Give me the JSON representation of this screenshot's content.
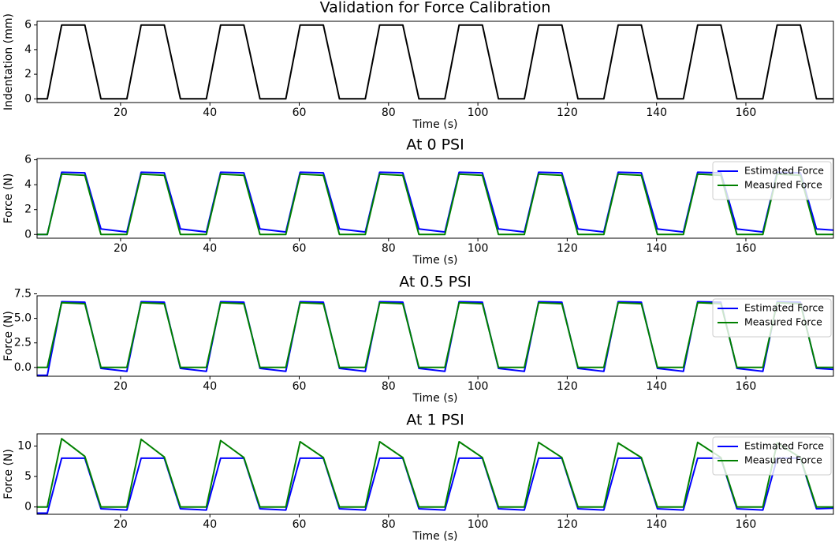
{
  "chart_data": [
    {
      "type": "line",
      "title": "Validation for Force Calibration",
      "xlabel": "Time (s)",
      "ylabel": "Indentation (mm)",
      "x": [
        1.3,
        3.6,
        6.8,
        12.0,
        15.6,
        21.4,
        24.6,
        29.8,
        33.4,
        39.2,
        42.4,
        47.6,
        51.2,
        57.0,
        60.2,
        65.4,
        69.0,
        74.8,
        78.0,
        83.2,
        86.8,
        92.6,
        95.8,
        101.0,
        104.6,
        110.4,
        113.6,
        118.8,
        122.4,
        128.2,
        131.4,
        136.6,
        140.2,
        146.0,
        149.2,
        154.4,
        158.0,
        163.8,
        167.0,
        172.2,
        175.8,
        179.6
      ],
      "series": [
        {
          "color": "#000000",
          "values": [
            0,
            0,
            6,
            6,
            0,
            0,
            6,
            6,
            0,
            0,
            6,
            6,
            0,
            0,
            6,
            6,
            0,
            0,
            6,
            6,
            0,
            0,
            6,
            6,
            0,
            0,
            6,
            6,
            0,
            0,
            6,
            6,
            0,
            0,
            6,
            6,
            0,
            0,
            6,
            6,
            0,
            0
          ]
        }
      ],
      "xlim": [
        1.3,
        179.6
      ],
      "ylim": [
        -0.3,
        6.3
      ],
      "xticks": [
        20,
        40,
        60,
        80,
        100,
        120,
        140,
        160
      ],
      "yticks": [
        0,
        2,
        4,
        6
      ]
    },
    {
      "type": "line",
      "title": "At 0 PSI",
      "xlabel": "Time (s)",
      "ylabel": "Force (N)",
      "legend": "upper right",
      "x": [
        1.3,
        3.6,
        6.8,
        12.0,
        15.6,
        21.4,
        24.6,
        29.8,
        33.4,
        39.2,
        42.4,
        47.6,
        51.2,
        57.0,
        60.2,
        65.4,
        69.0,
        74.8,
        78.0,
        83.2,
        86.8,
        92.6,
        95.8,
        101.0,
        104.6,
        110.4,
        113.6,
        118.8,
        122.4,
        128.2,
        131.4,
        136.6,
        140.2,
        146.0,
        149.2,
        154.4,
        158.0,
        163.8,
        167.0,
        172.2,
        175.8,
        179.6
      ],
      "series": [
        {
          "name": "Estimated Force",
          "color": "#0000ff",
          "values": [
            0,
            0,
            5.0,
            4.95,
            0.45,
            0.2,
            5.0,
            4.95,
            0.45,
            0.2,
            5.0,
            4.95,
            0.45,
            0.2,
            5.0,
            4.95,
            0.45,
            0.2,
            5.0,
            4.95,
            0.45,
            0.2,
            5.0,
            4.95,
            0.45,
            0.2,
            5.0,
            4.95,
            0.45,
            0.2,
            5.0,
            4.95,
            0.45,
            0.2,
            5.0,
            4.95,
            0.45,
            0.2,
            5.0,
            4.95,
            0.45,
            0.35
          ]
        },
        {
          "name": "Measured Force",
          "color": "#008000",
          "values": [
            0,
            0,
            4.85,
            4.75,
            0,
            0,
            4.85,
            4.75,
            0,
            0,
            4.85,
            4.75,
            0,
            0,
            4.85,
            4.75,
            0,
            0,
            4.85,
            4.75,
            0,
            0,
            4.85,
            4.75,
            0,
            0,
            4.85,
            4.75,
            0,
            0,
            4.85,
            4.75,
            0,
            0,
            4.85,
            4.75,
            0,
            0,
            4.85,
            4.75,
            0,
            0
          ]
        }
      ],
      "xlim": [
        1.3,
        179.6
      ],
      "ylim": [
        -0.3,
        6.1
      ],
      "xticks": [
        20,
        40,
        60,
        80,
        100,
        120,
        140,
        160
      ],
      "yticks": [
        0,
        2,
        4,
        6
      ]
    },
    {
      "type": "line",
      "title": "At 0.5 PSI",
      "xlabel": "Time (s)",
      "ylabel": "Force (N)",
      "legend": "upper right",
      "x": [
        1.3,
        3.6,
        6.8,
        12.0,
        15.6,
        21.4,
        24.6,
        29.8,
        33.4,
        39.2,
        42.4,
        47.6,
        51.2,
        57.0,
        60.2,
        65.4,
        69.0,
        74.8,
        78.0,
        83.2,
        86.8,
        92.6,
        95.8,
        101.0,
        104.6,
        110.4,
        113.6,
        118.8,
        122.4,
        128.2,
        131.4,
        136.6,
        140.2,
        146.0,
        149.2,
        154.4,
        158.0,
        163.8,
        167.0,
        172.2,
        175.8,
        179.6
      ],
      "series": [
        {
          "name": "Estimated Force",
          "color": "#0000ff",
          "values": [
            -0.8,
            -0.8,
            6.7,
            6.65,
            -0.1,
            -0.4,
            6.7,
            6.65,
            -0.1,
            -0.4,
            6.7,
            6.65,
            -0.1,
            -0.4,
            6.7,
            6.65,
            -0.1,
            -0.4,
            6.7,
            6.65,
            -0.1,
            -0.4,
            6.7,
            6.65,
            -0.1,
            -0.4,
            6.7,
            6.65,
            -0.1,
            -0.4,
            6.7,
            6.65,
            -0.1,
            -0.4,
            6.7,
            6.65,
            -0.1,
            -0.4,
            6.7,
            6.65,
            -0.1,
            -0.2
          ]
        },
        {
          "name": "Measured Force",
          "color": "#008000",
          "values": [
            0,
            0,
            6.6,
            6.5,
            0,
            0,
            6.6,
            6.5,
            0,
            0,
            6.6,
            6.5,
            0,
            0,
            6.6,
            6.5,
            0,
            0,
            6.6,
            6.5,
            0,
            0,
            6.6,
            6.5,
            0,
            0,
            6.6,
            6.5,
            0,
            0,
            6.6,
            6.5,
            0,
            0,
            6.6,
            6.5,
            0,
            0,
            6.6,
            6.5,
            0,
            0
          ]
        }
      ],
      "xlim": [
        1.3,
        179.6
      ],
      "ylim": [
        -0.9,
        7.3
      ],
      "xticks": [
        20,
        40,
        60,
        80,
        100,
        120,
        140,
        160
      ],
      "yticks": [
        {
          "value": 0,
          "label": "0.0"
        },
        2.5,
        {
          "value": 5,
          "label": "5.0"
        },
        7.5
      ]
    },
    {
      "type": "line",
      "title": "At 1 PSI",
      "xlabel": "Time (s)",
      "ylabel": "Force (N)",
      "legend": "upper right",
      "x": [
        1.3,
        3.6,
        6.8,
        12.0,
        15.6,
        21.4,
        24.6,
        29.8,
        33.4,
        39.2,
        42.4,
        47.6,
        51.2,
        57.0,
        60.2,
        65.4,
        69.0,
        74.8,
        78.0,
        83.2,
        86.8,
        92.6,
        95.8,
        101.0,
        104.6,
        110.4,
        113.6,
        118.8,
        122.4,
        128.2,
        131.4,
        136.6,
        140.2,
        146.0,
        149.2,
        154.4,
        158.0,
        163.8,
        167.0,
        172.2,
        175.8,
        179.6
      ],
      "series": [
        {
          "name": "Estimated Force",
          "color": "#0000ff",
          "values": [
            -1.0,
            -1.0,
            8.0,
            8.0,
            -0.3,
            -0.5,
            8.0,
            8.0,
            -0.3,
            -0.5,
            8.0,
            8.0,
            -0.3,
            -0.5,
            8.0,
            8.0,
            -0.3,
            -0.5,
            8.0,
            8.0,
            -0.3,
            -0.5,
            8.0,
            8.0,
            -0.3,
            -0.5,
            8.0,
            8.0,
            -0.3,
            -0.5,
            8.0,
            8.0,
            -0.3,
            -0.5,
            8.0,
            8.0,
            -0.3,
            -0.5,
            8.0,
            8.0,
            -0.3,
            -0.2
          ]
        },
        {
          "name": "Measured Force",
          "color": "#008000",
          "values": [
            0,
            0,
            11.2,
            8.3,
            0,
            0,
            11.1,
            8.2,
            0,
            0,
            10.9,
            8.1,
            0,
            0,
            10.7,
            8.1,
            0,
            0,
            10.7,
            8.1,
            0,
            0,
            10.7,
            8.1,
            0,
            0,
            10.6,
            8.1,
            0,
            0,
            10.5,
            8.1,
            0,
            0,
            10.6,
            8.1,
            0,
            0,
            10.5,
            8.1,
            0,
            0
          ]
        }
      ],
      "xlim": [
        1.3,
        179.6
      ],
      "ylim": [
        -1.2,
        12
      ],
      "xticks": [
        20,
        40,
        60,
        80,
        100,
        120,
        140,
        160
      ],
      "yticks": [
        0,
        5,
        10
      ]
    }
  ]
}
